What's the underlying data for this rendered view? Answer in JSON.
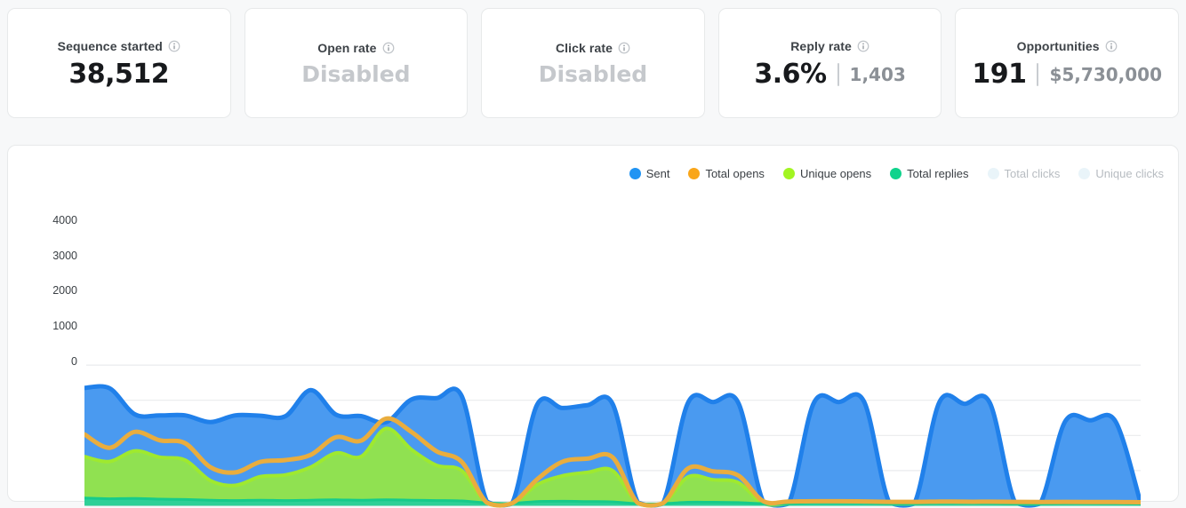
{
  "stats": {
    "cards": [
      {
        "label": "Sequence started",
        "value": "38,512",
        "style": "normal",
        "secondary": null
      },
      {
        "label": "Open rate",
        "value": "Disabled",
        "style": "disabled",
        "secondary": null
      },
      {
        "label": "Click rate",
        "value": "Disabled",
        "style": "disabled",
        "secondary": null
      },
      {
        "label": "Reply rate",
        "value": "3.6%",
        "style": "normal",
        "secondary": "1,403"
      },
      {
        "label": "Opportunities",
        "value": "191",
        "style": "normal",
        "secondary": "$5,730,000"
      }
    ],
    "info_icon": "info-circle"
  },
  "chart_data": {
    "type": "area",
    "title": "",
    "grid": true,
    "legend_position": "top-right",
    "y_axis": {
      "range": [
        0,
        4000
      ],
      "ticks": [
        4000,
        3000,
        2000,
        1000,
        0
      ]
    },
    "x_axis": {
      "tick_labels_visible": false
    },
    "draw_order": [
      0,
      2,
      3,
      1
    ],
    "colors": {
      "grid": "#eaebed",
      "disabled_dot": "#e9f4f9",
      "accent_blue": "#2094f3"
    },
    "series": [
      {
        "name": "Sent",
        "enabled": true,
        "line": "#2080ea",
        "fill": "#4a9af0",
        "dot": "#2094f3",
        "width": 5,
        "values": [
          3350,
          3340,
          2600,
          2570,
          2570,
          2380,
          2570,
          2560,
          2550,
          3290,
          2590,
          2550,
          2380,
          3020,
          3060,
          3120,
          120,
          60,
          2870,
          2780,
          2860,
          2900,
          100,
          60,
          2930,
          2950,
          2930,
          100,
          60,
          2920,
          2950,
          2960,
          100,
          60,
          2950,
          2900,
          2930,
          100,
          60,
          2400,
          2430,
          2400,
          80
        ]
      },
      {
        "name": "Total opens",
        "enabled": true,
        "line": "#e9ad3e",
        "fill": null,
        "dot": "#f9a61a",
        "width": 5,
        "values": [
          2030,
          1650,
          2100,
          1860,
          1780,
          1100,
          950,
          1250,
          1300,
          1450,
          1950,
          1850,
          2480,
          2100,
          1550,
          1250,
          90,
          70,
          750,
          1250,
          1340,
          1380,
          80,
          70,
          1060,
          980,
          860,
          130,
          120,
          130,
          130,
          125,
          110,
          110,
          120,
          115,
          115,
          110,
          105,
          110,
          108,
          105,
          100
        ]
      },
      {
        "name": "Unique opens",
        "enabled": true,
        "line": "#9fe92f",
        "fill": "#90e151",
        "dot": "#a2f522",
        "width": 4,
        "values": [
          1400,
          1260,
          1560,
          1380,
          1300,
          720,
          580,
          830,
          880,
          1100,
          1500,
          1400,
          2200,
          1600,
          1150,
          1000,
          70,
          50,
          600,
          850,
          950,
          1000,
          60,
          50,
          820,
          740,
          660,
          60,
          50,
          80,
          70,
          70,
          50,
          50,
          70,
          60,
          60,
          50,
          50,
          60,
          60,
          60,
          50
        ]
      },
      {
        "name": "Total replies",
        "enabled": true,
        "line": "#16cb8b",
        "fill": "#2ed097",
        "dot": "#0fd38c",
        "width": 3,
        "values": [
          220,
          200,
          210,
          190,
          180,
          160,
          150,
          160,
          150,
          160,
          170,
          160,
          170,
          160,
          150,
          140,
          80,
          70,
          120,
          130,
          120,
          110,
          60,
          60,
          100,
          100,
          90,
          60,
          60,
          90,
          90,
          85,
          55,
          55,
          80,
          80,
          75,
          50,
          50,
          70,
          70,
          65,
          50
        ]
      },
      {
        "name": "Total clicks",
        "enabled": false,
        "line": "#e9f4f9",
        "fill": null,
        "dot": "#e9f4f9",
        "width": 0,
        "values": []
      },
      {
        "name": "Unique clicks",
        "enabled": false,
        "line": "#e9f4f9",
        "fill": null,
        "dot": "#e9f4f9",
        "width": 0,
        "values": []
      }
    ]
  }
}
